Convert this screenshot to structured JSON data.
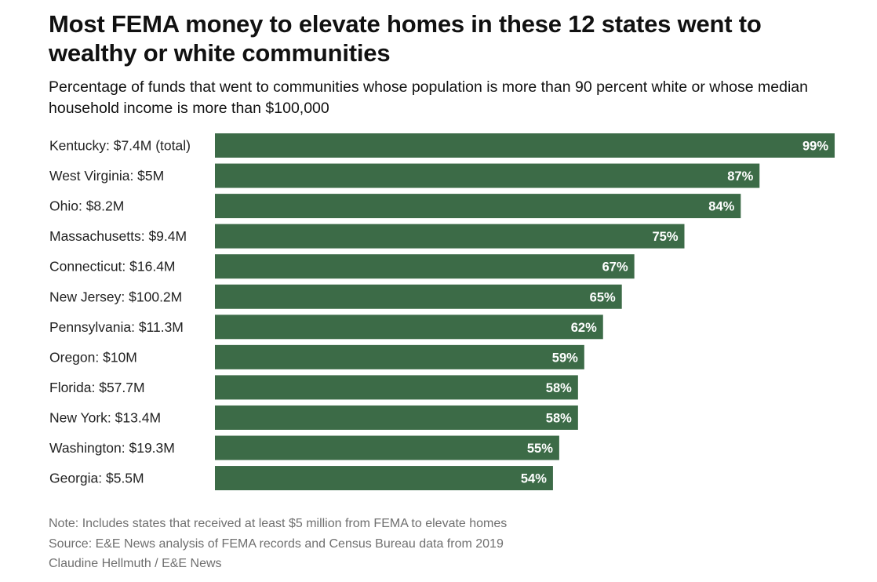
{
  "title": "Most FEMA money to elevate homes in these 12 states went to wealthy or white communities",
  "subtitle": "Percentage of funds that went to communities whose population is more than 90 percent white or whose median household income is more than $100,000",
  "colors": {
    "bar": "#3c6b47",
    "value_label": "#ffffff",
    "footer_text": "#6f6f6f"
  },
  "chart_data": {
    "type": "bar",
    "orientation": "horizontal",
    "title": "Most FEMA money to elevate homes in these 12 states went to wealthy or white communities",
    "subtitle": "Percentage of funds that went to communities whose population is more than 90 percent white or whose median household income is more than $100,000",
    "xlabel": "",
    "ylabel": "",
    "xlim": [
      0,
      100
    ],
    "grid": false,
    "categories": [
      "Kentucky: $7.4M (total)",
      "West Virginia: $5M",
      "Ohio: $8.2M",
      "Massachusetts: $9.4M",
      "Connecticut: $16.4M",
      "New Jersey: $100.2M",
      "Pennsylvania: $11.3M",
      "Oregon: $10M",
      "Florida: $57.7M",
      "New York: $13.4M",
      "Washington: $19.3M",
      "Georgia: $5.5M"
    ],
    "values": [
      99,
      87,
      84,
      75,
      67,
      65,
      62,
      59,
      58,
      58,
      55,
      54
    ],
    "value_labels": [
      "99%",
      "87%",
      "84%",
      "75%",
      "67%",
      "65%",
      "62%",
      "59%",
      "58%",
      "58%",
      "55%",
      "54%"
    ]
  },
  "footer": {
    "note": "Note: Includes states that received at least $5 million from FEMA to elevate homes",
    "source": "Source: E&E News analysis of FEMA records and Census Bureau data from 2019",
    "credit": "Claudine Hellmuth / E&E News"
  }
}
